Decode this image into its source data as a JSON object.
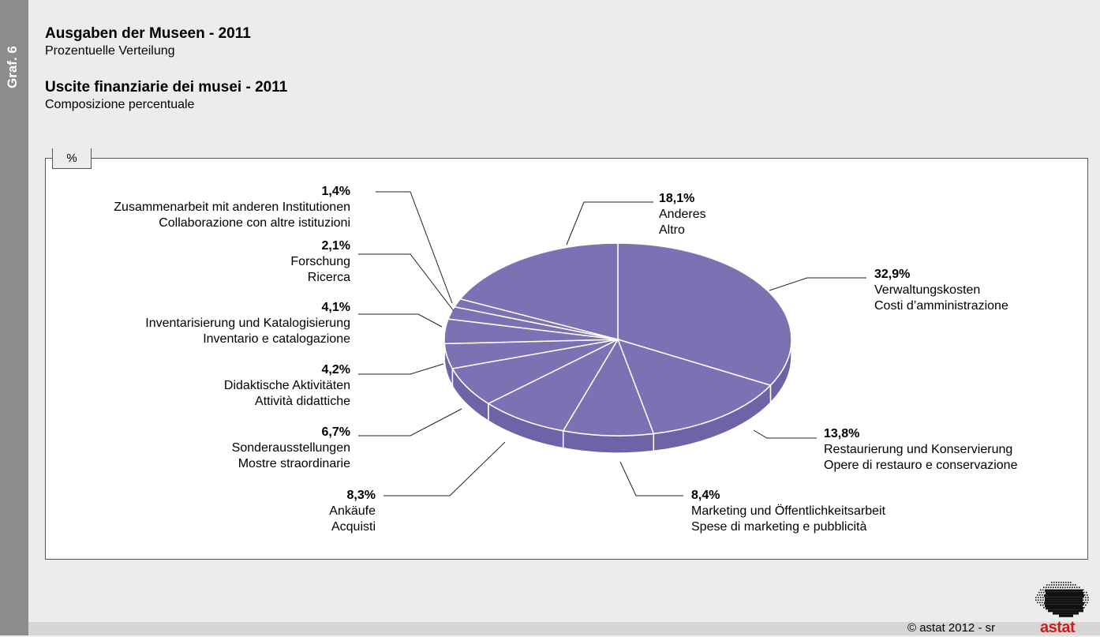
{
  "side_tab": {
    "label": "Graf. 6"
  },
  "header": {
    "title_de": "Ausgaben der Museen - 2011",
    "subtitle_de": "Prozentuelle Verteilung",
    "title_it": "Uscite finanziarie dei musei - 2011",
    "subtitle_it": "Composizione percentuale"
  },
  "unit": "%",
  "footer": {
    "copyright": "© astat 2012 - sr",
    "logo_text": "astat"
  },
  "colors": {
    "slice": "#7a72b2",
    "slice_side": "#6c64a6",
    "stroke": "#ffffff",
    "logo": "#d11a1a"
  },
  "chart_data": {
    "type": "pie",
    "title": "Ausgaben der Museen - 2011",
    "slices": [
      {
        "value": 32.9,
        "value_label": "32,9%",
        "label_de": "Verwaltungskosten",
        "label_it": "Costi d’amministrazione"
      },
      {
        "value": 13.8,
        "value_label": "13,8%",
        "label_de": "Restaurierung und Konservierung",
        "label_it": "Opere di restauro e conservazione"
      },
      {
        "value": 8.4,
        "value_label": "8,4%",
        "label_de": "Marketing und Öffentlichkeitsarbeit",
        "label_it": "Spese di marketing e pubblicità"
      },
      {
        "value": 8.3,
        "value_label": "8,3%",
        "label_de": "Ankäufe",
        "label_it": "Acquisti"
      },
      {
        "value": 6.7,
        "value_label": "6,7%",
        "label_de": "Sonderausstellungen",
        "label_it": "Mostre straordinarie"
      },
      {
        "value": 4.2,
        "value_label": "4,2%",
        "label_de": "Didaktische Aktivitäten",
        "label_it": "Attività didattiche"
      },
      {
        "value": 4.1,
        "value_label": "4,1%",
        "label_de": "Inventarisierung und Katalogisierung",
        "label_it": "Inventario e catalogazione"
      },
      {
        "value": 2.1,
        "value_label": "2,1%",
        "label_de": "Forschung",
        "label_it": "Ricerca"
      },
      {
        "value": 1.4,
        "value_label": "1,4%",
        "label_de": "Zusammenarbeit mit anderen Institutionen",
        "label_it": "Collaborazione con altre istituzioni"
      },
      {
        "value": 18.1,
        "value_label": "18,1%",
        "label_de": "Anderes",
        "label_it": "Altro"
      }
    ]
  }
}
